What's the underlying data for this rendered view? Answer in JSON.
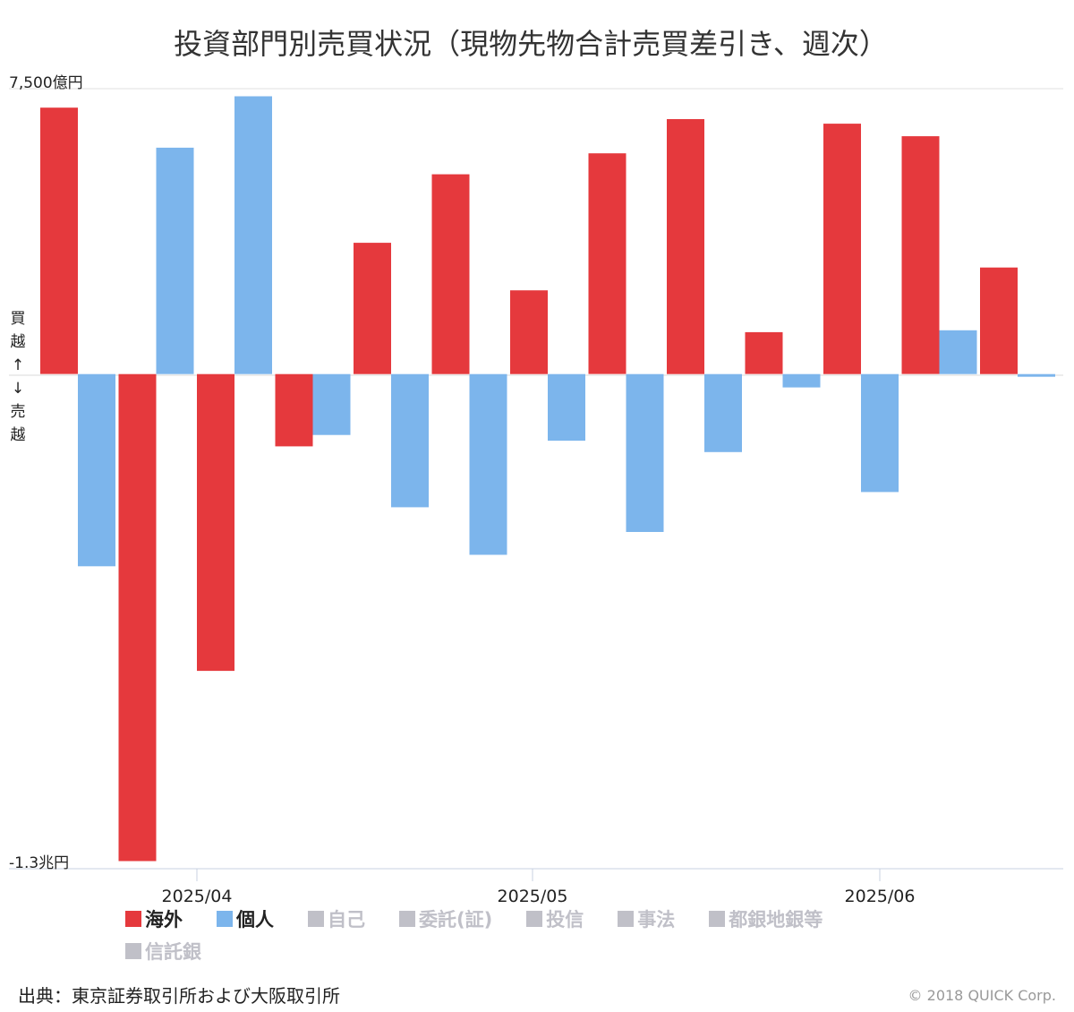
{
  "chart_data": {
    "type": "bar",
    "title": "投資部門別売買状況（現物先物合計売買差引き、週次）",
    "y_top_label": "7,500億円",
    "y_bottom_label": "-1.3兆円",
    "ylim": [
      -13000,
      7500
    ],
    "ylabel_upper": [
      "買",
      "越",
      "↑"
    ],
    "ylabel_lower": [
      "↓",
      "売",
      "越"
    ],
    "x_tick_labels": [
      "2025/04",
      "2025/05",
      "2025/06"
    ],
    "grid": false,
    "legend_position": "bottom",
    "series": [
      {
        "name": "海外",
        "color": "#e5393d",
        "active": true,
        "values": [
          7000,
          -12800,
          -7800,
          -1900,
          3450,
          5250,
          2200,
          5800,
          6700,
          1100,
          6580,
          6250,
          2800
        ]
      },
      {
        "name": "個人",
        "color": "#7cb5ec",
        "active": true,
        "values": [
          -5050,
          5950,
          7300,
          -1600,
          -3500,
          -4750,
          -1750,
          -4150,
          -2050,
          -350,
          -3100,
          1150,
          -70
        ]
      }
    ],
    "inactive_legend": [
      "自己",
      "委託(証)",
      "投信",
      "事法",
      "都銀地銀等",
      "信託銀"
    ],
    "inactive_color": "#c0c0c8"
  },
  "footer": {
    "source": "出典：東京証券取引所および大阪取引所",
    "credit": "© 2018 QUICK Corp."
  }
}
